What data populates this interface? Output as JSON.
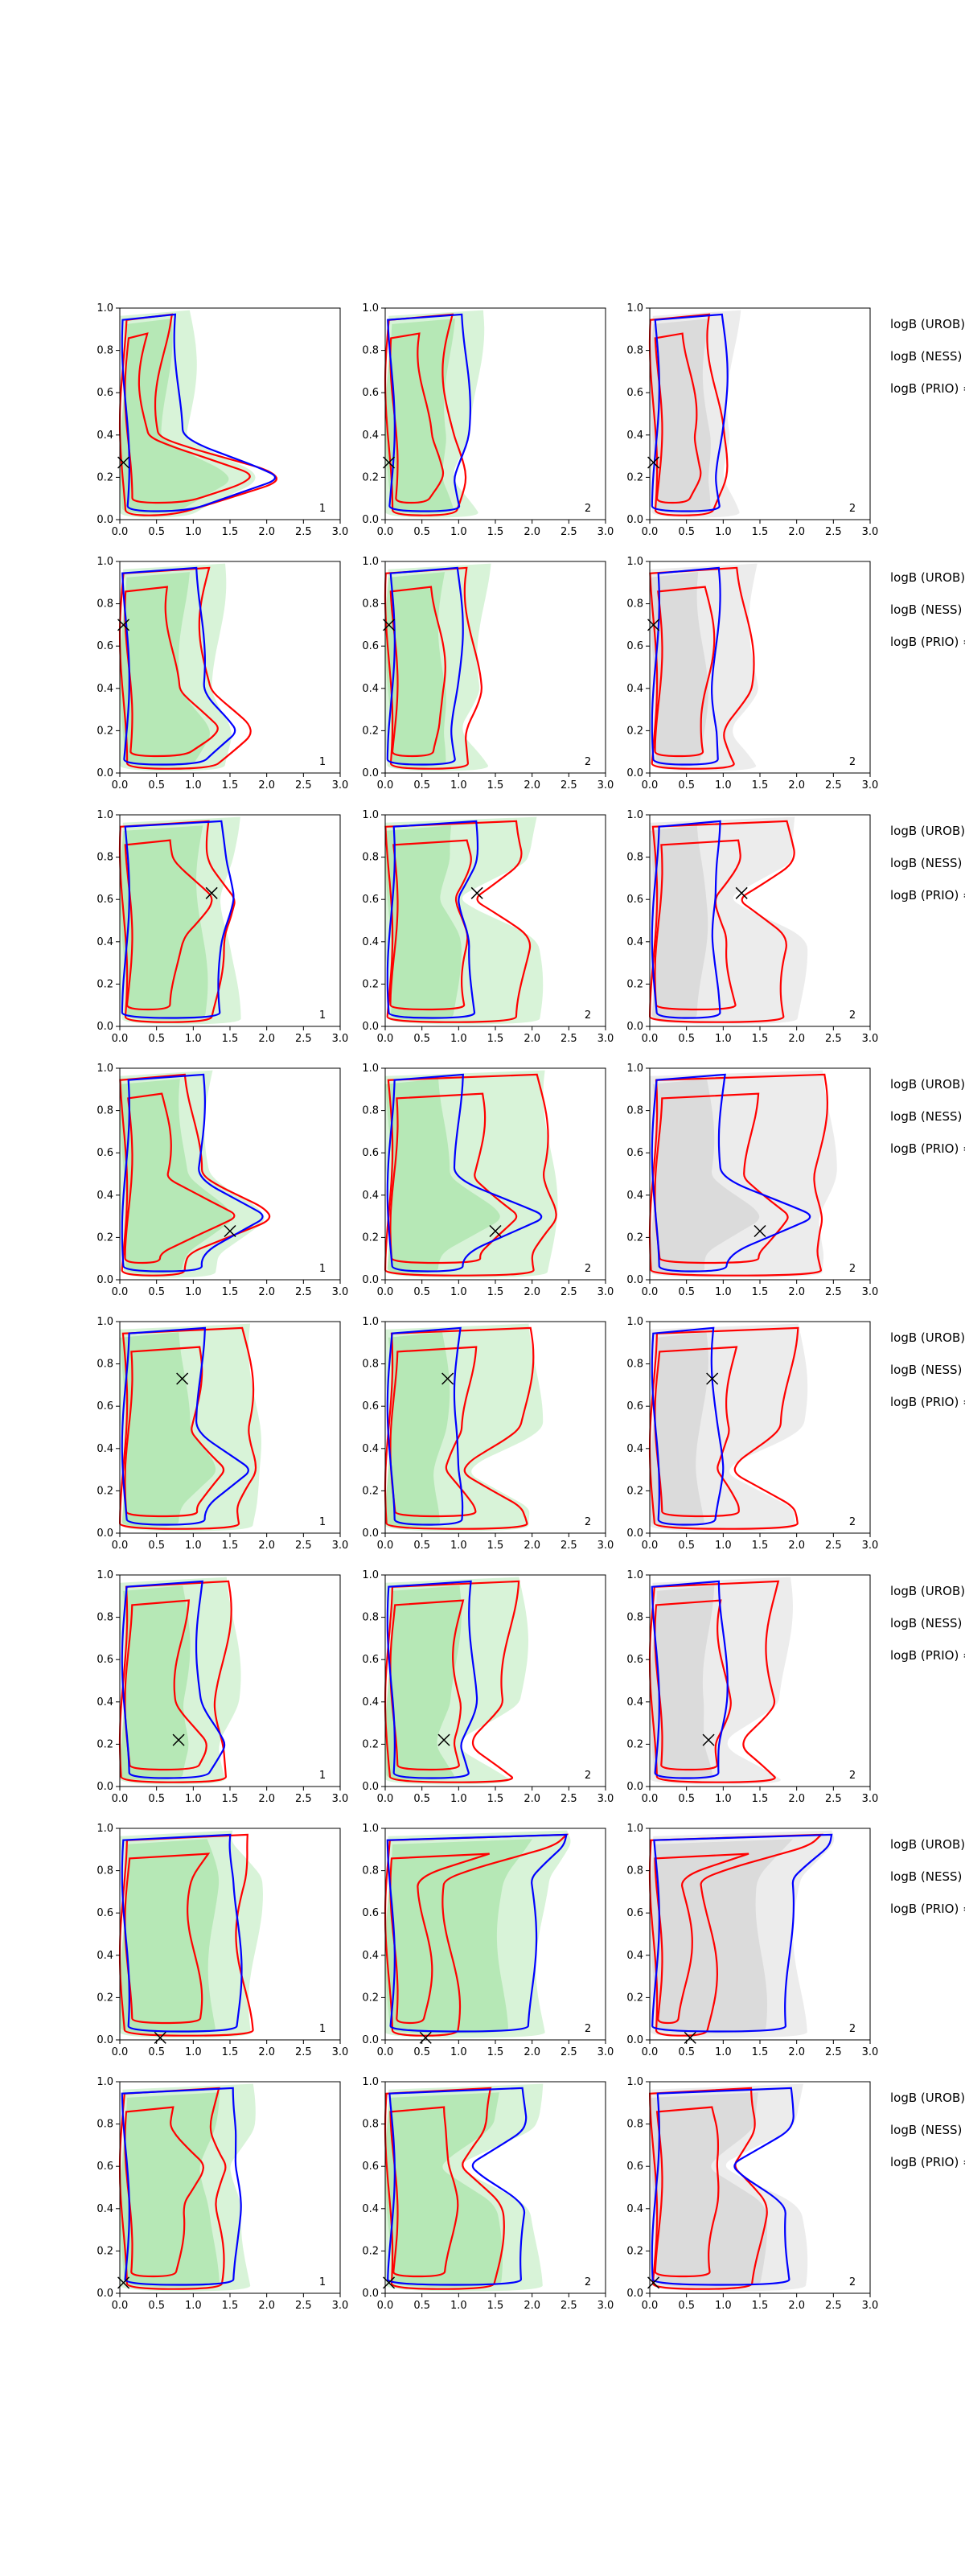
{
  "figure": {
    "grid": false,
    "background": "#ffffff"
  },
  "colors": {
    "blue_contour": "#0000ff",
    "red_contour": "#ff0000",
    "green_fill": "#8fdc8f",
    "grey_fill": "#c8c8c8",
    "marker": "#000000"
  },
  "side_labels": [
    "logB (UROB) =",
    "logB (NESS) =",
    "logB (PRIO) ="
  ],
  "chart_data": {
    "type": "contour",
    "rows": 8,
    "columns": 3,
    "xlim": [
      0.0,
      3.0
    ],
    "ylim": [
      0.0,
      1.0
    ],
    "x_ticks": [
      "0.0",
      "0.5",
      "1.0",
      "1.5",
      "2.0",
      "2.5",
      "3.0"
    ],
    "y_ticks": [
      "0.0",
      "0.2",
      "0.4",
      "0.6",
      "0.8",
      "1.0"
    ],
    "column_labels": [
      "1",
      "2",
      "2"
    ],
    "column_fill": [
      "green",
      "green",
      "grey"
    ],
    "rows_data": [
      {
        "marker": [
          0.05,
          0.27
        ],
        "bx": [
          0.8,
          1.1,
          1.0
        ],
        "rx": [
          0.6,
          0.9,
          0.9
        ],
        "tail": [
          2.5,
          1.0,
          1.0
        ],
        "tail_y": 0.2
      },
      {
        "marker": [
          0.05,
          0.7
        ],
        "bx": [
          1.1,
          1.0,
          0.9
        ],
        "rx": [
          1.2,
          1.2,
          1.3
        ],
        "tail": [
          1.8,
          1.0,
          1.0
        ],
        "tail_y": 0.2
      },
      {
        "marker": [
          1.25,
          0.63
        ],
        "bx": [
          1.4,
          1.2,
          0.9
        ],
        "rx": [
          1.3,
          1.9,
          1.9
        ],
        "tail": [
          1.6,
          1.0,
          1.0
        ],
        "tail_y": 0.6
      },
      {
        "marker": [
          1.5,
          0.23
        ],
        "bx": [
          1.1,
          1.0,
          1.0
        ],
        "rx": [
          1.0,
          2.1,
          2.3
        ],
        "tail": [
          2.3,
          2.5,
          2.5
        ],
        "tail_y": 0.3
      },
      {
        "marker": [
          0.85,
          0.73
        ],
        "bx": [
          1.1,
          1.0,
          0.9
        ],
        "rx": [
          1.7,
          1.9,
          1.9
        ],
        "tail": [
          2.0,
          1.0,
          1.0
        ],
        "tail_y": 0.3
      },
      {
        "marker": [
          0.8,
          0.22
        ],
        "bx": [
          1.1,
          1.2,
          1.0
        ],
        "rx": [
          1.4,
          1.7,
          1.7
        ],
        "tail": [
          1.5,
          1.0,
          1.0
        ],
        "tail_y": 0.2
      },
      {
        "marker": [
          0.55,
          0.01
        ],
        "bx": [
          1.6,
          2.0,
          1.9
        ],
        "rx": [
          1.7,
          0.9,
          0.8
        ],
        "tail": [
          1.6,
          2.8,
          2.8
        ],
        "tail_y": 0.95
      },
      {
        "marker": [
          0.05,
          0.05
        ],
        "bx": [
          1.6,
          1.9,
          1.9
        ],
        "rx": [
          1.3,
          1.5,
          1.5
        ],
        "tail": [
          1.6,
          1.0,
          1.0
        ],
        "tail_y": 0.6
      }
    ]
  }
}
